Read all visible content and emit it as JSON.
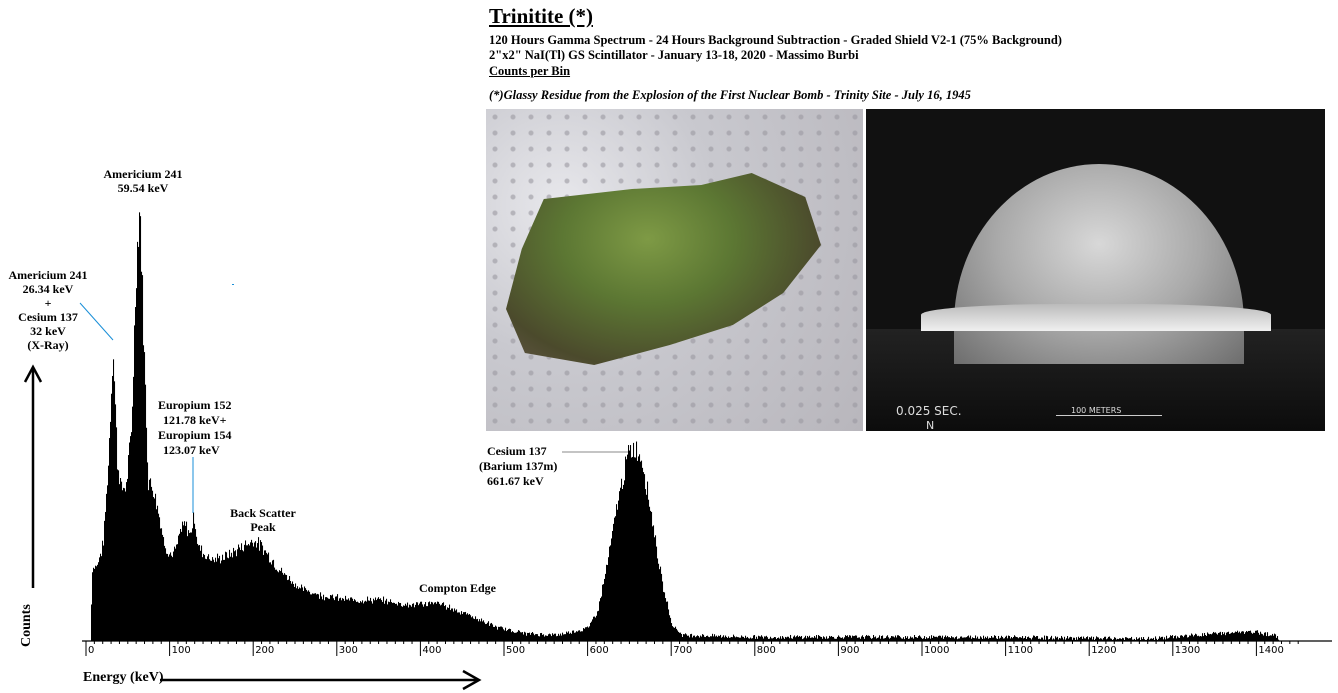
{
  "header": {
    "title": "Trinitite (*)",
    "line1": "120 Hours Gamma Spectrum - 24 Hours Background Subtraction - Graded Shield V2-1 (75% Background)",
    "line2": "2\"x2\" NaI(Tl) GS Scintillator - January 13-18, 2020 - Massimo Burbi",
    "line3": "Counts per Bin",
    "footnote": "(*)Glassy Residue from the Explosion of the First Nuclear Bomb - Trinity Site - July 16, 1945"
  },
  "photos": {
    "trinitite_sample": "trinitite-rock-photo",
    "explosion": {
      "time": "0.025 SEC.",
      "north": "N",
      "scale": "100 METERS"
    }
  },
  "annotations": {
    "am241_59": [
      "Americium 241",
      "59.54 keV"
    ],
    "am241_26_cs137_32": [
      "Americium 241",
      "26.34 keV",
      "+",
      "Cesium 137",
      "32 keV",
      "(X-Ray)"
    ],
    "eu152_eu154": [
      "Europium 152",
      "121.78 keV+",
      "Europium 154",
      "123.07 keV"
    ],
    "back_scatter": [
      "Back Scatter",
      "Peak"
    ],
    "compton": [
      "Compton Edge"
    ],
    "cs137": [
      "Cesium 137",
      "(Barium 137m)",
      "661.67 keV"
    ]
  },
  "colors": {
    "spectrum": "#000000",
    "leader_line": "#1a8fd8",
    "cs_leader": "#888888"
  },
  "chart_data": {
    "type": "area",
    "title": "Trinitite (*)",
    "xlabel": "Energy (keV)",
    "ylabel": "Counts",
    "xlim": [
      0,
      1450
    ],
    "xticks": [
      "0",
      "100",
      "200",
      "300",
      "400",
      "500",
      "600",
      "700",
      "800",
      "900",
      "1000",
      "1100",
      "1200",
      "1300",
      "1400"
    ],
    "grid": false,
    "y_units": "relative counts per bin (no scale printed)",
    "series": [
      {
        "points": [
          [
            5,
            0
          ],
          [
            7,
            72
          ],
          [
            13,
            75
          ],
          [
            20,
            95
          ],
          [
            26,
            170
          ],
          [
            32,
            295
          ],
          [
            37,
            180
          ],
          [
            42,
            150
          ],
          [
            48,
            155
          ],
          [
            54,
            210
          ],
          [
            60,
            380
          ],
          [
            64,
            437
          ],
          [
            69,
            290
          ],
          [
            74,
            160
          ],
          [
            80,
            152
          ],
          [
            86,
            130
          ],
          [
            92,
            100
          ],
          [
            98,
            88
          ],
          [
            102,
            84
          ],
          [
            108,
            92
          ],
          [
            113,
            110
          ],
          [
            118,
            115
          ],
          [
            124,
            105
          ],
          [
            129,
            125
          ],
          [
            133,
            95
          ],
          [
            142,
            85
          ],
          [
            154,
            80
          ],
          [
            171,
            85
          ],
          [
            189,
            95
          ],
          [
            201,
            100
          ],
          [
            213,
            90
          ],
          [
            231,
            70
          ],
          [
            255,
            52
          ],
          [
            279,
            45
          ],
          [
            314,
            40
          ],
          [
            350,
            40
          ],
          [
            386,
            35
          ],
          [
            421,
            37
          ],
          [
            457,
            25
          ],
          [
            493,
            12
          ],
          [
            529,
            6
          ],
          [
            564,
            5
          ],
          [
            600,
            12
          ],
          [
            612,
            30
          ],
          [
            624,
            80
          ],
          [
            636,
            140
          ],
          [
            648,
            185
          ],
          [
            656,
            193
          ],
          [
            665,
            180
          ],
          [
            677,
            120
          ],
          [
            689,
            55
          ],
          [
            701,
            15
          ],
          [
            713,
            5
          ],
          [
            790,
            3
          ],
          [
            1088,
            3
          ],
          [
            1267,
            1
          ],
          [
            1362,
            7
          ],
          [
            1398,
            8
          ],
          [
            1421,
            5
          ],
          [
            1427,
            0
          ]
        ]
      }
    ]
  }
}
